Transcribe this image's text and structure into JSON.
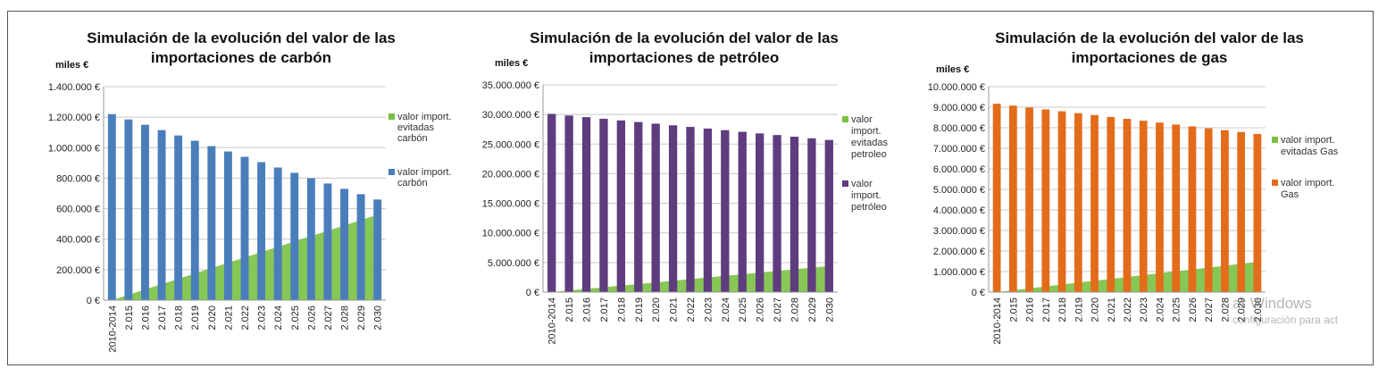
{
  "chart_data": [
    {
      "type": "bar",
      "stacked": true,
      "title": "Simulación de la evolución del valor de las importaciones de carbón",
      "ylabel": "miles €",
      "ylim": [
        0,
        1400000
      ],
      "ytick_labels": [
        "0 €",
        "200.000 €",
        "400.000 €",
        "600.000 €",
        "800.000 €",
        "1.000.000 €",
        "1.200.000 €",
        "1.400.000 €"
      ],
      "categories": [
        "2010-2014",
        "2.015",
        "2.016",
        "2.017",
        "2.018",
        "2.019",
        "2.020",
        "2.021",
        "2.022",
        "2.023",
        "2.024",
        "2.025",
        "2.026",
        "2.027",
        "2.028",
        "2.029",
        "2.030"
      ],
      "grid": true,
      "legend_position": "right",
      "series": [
        {
          "name": "valor import. evitadas carbón",
          "legend_lines": [
            "valor import.",
            "evitadas",
            "carbón"
          ],
          "color": "#7ac142",
          "values": [
            0,
            35000,
            70000,
            105000,
            140000,
            175000,
            210000,
            245000,
            280000,
            315000,
            350000,
            385000,
            420000,
            455000,
            490000,
            525000,
            560000
          ]
        },
        {
          "name": "valor import. carbón",
          "legend_lines": [
            "valor import.",
            "carbón"
          ],
          "color": "#4a7ebb",
          "values": [
            1220000,
            1185000,
            1150000,
            1115000,
            1080000,
            1045000,
            1010000,
            975000,
            940000,
            905000,
            870000,
            835000,
            800000,
            765000,
            730000,
            695000,
            660000
          ]
        }
      ]
    },
    {
      "type": "bar",
      "stacked": true,
      "title": "Simulación de la evolución del valor de las importaciones de petróleo",
      "ylabel": "miles €",
      "ylim": [
        0,
        35000000
      ],
      "ytick_labels": [
        "0 €",
        "5.000.000 €",
        "10.000.000 €",
        "15.000.000 €",
        "20.000.000 €",
        "25.000.000 €",
        "30.000.000 €",
        "35.000.000 €"
      ],
      "categories": [
        "2010-2014",
        "2.015",
        "2.016",
        "2.017",
        "2.018",
        "2.019",
        "2.020",
        "2.021",
        "2.022",
        "2.023",
        "2.024",
        "2.025",
        "2.026",
        "2.027",
        "2.028",
        "2.029",
        "2.030"
      ],
      "grid": true,
      "legend_position": "right",
      "series": [
        {
          "name": "valor import. evitadas petroleo",
          "legend_lines": [
            "valor",
            "import.",
            "evitadas",
            "petroleo"
          ],
          "color": "#7ac142",
          "values": [
            0,
            275000,
            550000,
            825000,
            1100000,
            1375000,
            1650000,
            1925000,
            2200000,
            2475000,
            2750000,
            3025000,
            3300000,
            3575000,
            3850000,
            4125000,
            4400000
          ]
        },
        {
          "name": "valor import. petróleo",
          "legend_lines": [
            "valor",
            "import.",
            "petróleo"
          ],
          "color": "#5e3c7e",
          "values": [
            30100000,
            29825000,
            29550000,
            29275000,
            29000000,
            28725000,
            28450000,
            28175000,
            27900000,
            27625000,
            27350000,
            27075000,
            26800000,
            26525000,
            26250000,
            25975000,
            25700000
          ]
        }
      ]
    },
    {
      "type": "bar",
      "stacked": true,
      "title": "Simulación de la evolución del valor de las importaciones de gas",
      "ylabel": "miles €",
      "ylim": [
        0,
        10000000
      ],
      "ytick_labels": [
        "0 €",
        "1.000.000 €",
        "2.000.000 €",
        "3.000.000 €",
        "4.000.000 €",
        "5.000.000 €",
        "6.000.000 €",
        "7.000.000 €",
        "8.000.000 €",
        "9.000.000 €",
        "10.000.000 €"
      ],
      "categories": [
        "2010-2014",
        "2.015",
        "2.016",
        "2.017",
        "2.018",
        "2.019",
        "2.020",
        "2.021",
        "2.022",
        "2.023",
        "2.024",
        "2.025",
        "2.026",
        "2.027",
        "2.028",
        "2.029",
        "2.030"
      ],
      "grid": true,
      "legend_position": "right",
      "series": [
        {
          "name": "valor import. evitadas Gas",
          "legend_lines": [
            "valor import.",
            "evitadas Gas"
          ],
          "color": "#7ac142",
          "values": [
            0,
            92000,
            184000,
            276000,
            368000,
            460000,
            552000,
            644000,
            736000,
            828000,
            920000,
            1012000,
            1104000,
            1196000,
            1288000,
            1380000,
            1472000
          ]
        },
        {
          "name": "valor import. Gas",
          "legend_lines": [
            "valor import.",
            "Gas"
          ],
          "color": "#e36c1a",
          "values": [
            9170000,
            9078000,
            8986000,
            8894000,
            8802000,
            8710000,
            8618000,
            8526000,
            8434000,
            8342000,
            8250000,
            8158000,
            8066000,
            7974000,
            7882000,
            7790000,
            7698000
          ]
        }
      ]
    }
  ],
  "watermark": {
    "line1": "ar Windows",
    "line2": "configuración para act"
  }
}
